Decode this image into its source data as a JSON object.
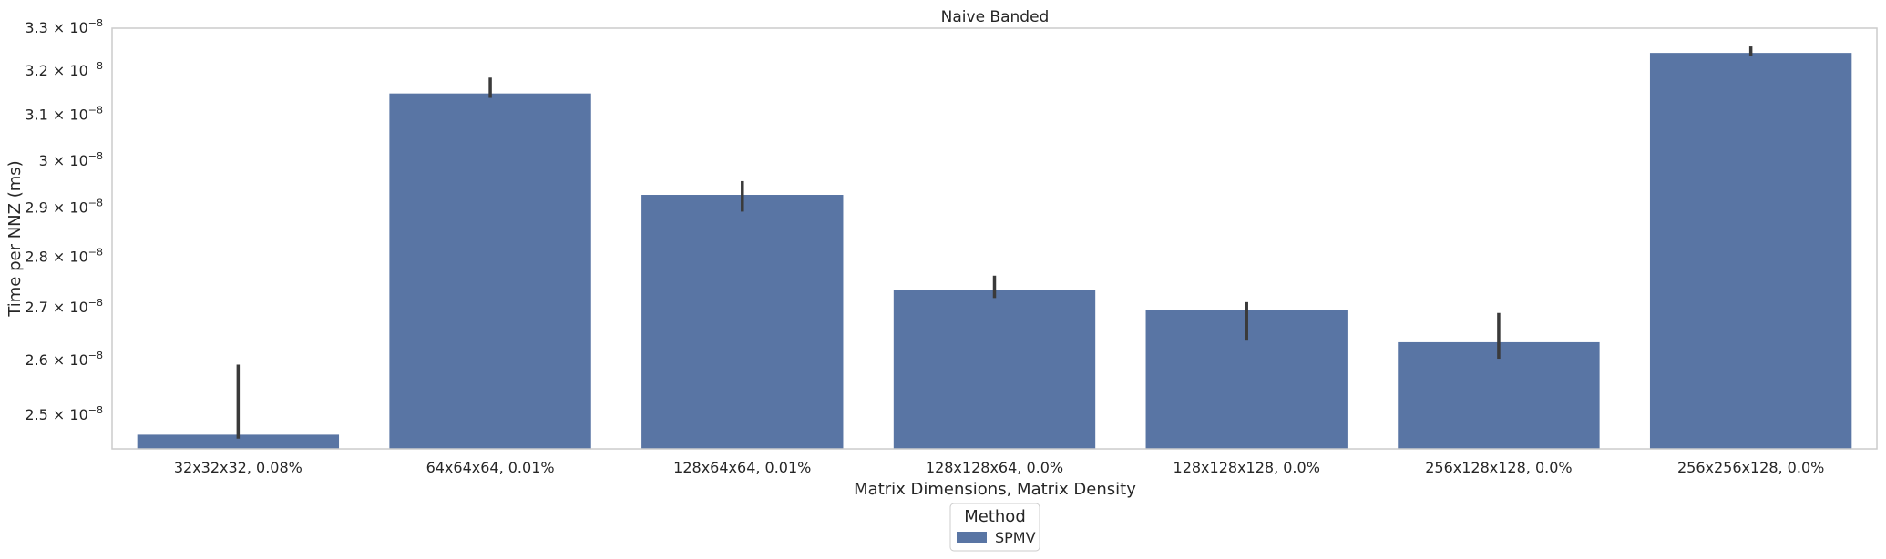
{
  "chart_data": {
    "type": "bar",
    "title": "Naive Banded",
    "xlabel": "Matrix Dimensions, Matrix Density",
    "ylabel": "Time per NNZ (ms)",
    "y_scale": "log",
    "ylim": [
      2.44e-08,
      3.3e-08
    ],
    "yticks": [
      {
        "value": 2.5e-08,
        "mantissa": "2.5",
        "exponent": "−8"
      },
      {
        "value": 2.6e-08,
        "mantissa": "2.6",
        "exponent": "−8"
      },
      {
        "value": 2.7e-08,
        "mantissa": "2.7",
        "exponent": "−8"
      },
      {
        "value": 2.8e-08,
        "mantissa": "2.8",
        "exponent": "−8"
      },
      {
        "value": 2.9e-08,
        "mantissa": "2.9",
        "exponent": "−8"
      },
      {
        "value": 3e-08,
        "mantissa": "3",
        "exponent": "−8"
      },
      {
        "value": 3.1e-08,
        "mantissa": "3.1",
        "exponent": "−8"
      },
      {
        "value": 3.2e-08,
        "mantissa": "3.2",
        "exponent": "−8"
      },
      {
        "value": 3.3e-08,
        "mantissa": "3.3",
        "exponent": "−8"
      }
    ],
    "tick_multiplier": "10",
    "categories": [
      "32x32x32, 0.08%",
      "64x64x64, 0.01%",
      "128x64x64, 0.01%",
      "128x128x64, 0.0%",
      "128x128x128, 0.0%",
      "256x128x128, 0.0%",
      "256x256x128, 0.0%"
    ],
    "series": [
      {
        "name": "SPMV",
        "color": "#5975a4",
        "values": [
          2.465e-08,
          3.149e-08,
          2.928e-08,
          2.734e-08,
          2.696e-08,
          2.634e-08,
          3.242e-08
        ],
        "ci_low": [
          2.458e-08,
          3.139e-08,
          2.893e-08,
          2.719e-08,
          2.637e-08,
          2.603e-08,
          3.236e-08
        ],
        "ci_high": [
          2.592e-08,
          3.185e-08,
          2.957e-08,
          2.763e-08,
          2.711e-08,
          2.69e-08,
          3.257e-08
        ]
      }
    ],
    "legend": {
      "title": "Method",
      "position": "bottom-center"
    },
    "grid": false,
    "error_bar_color": "#3a3a3a",
    "spine_color": "#cccccc"
  }
}
